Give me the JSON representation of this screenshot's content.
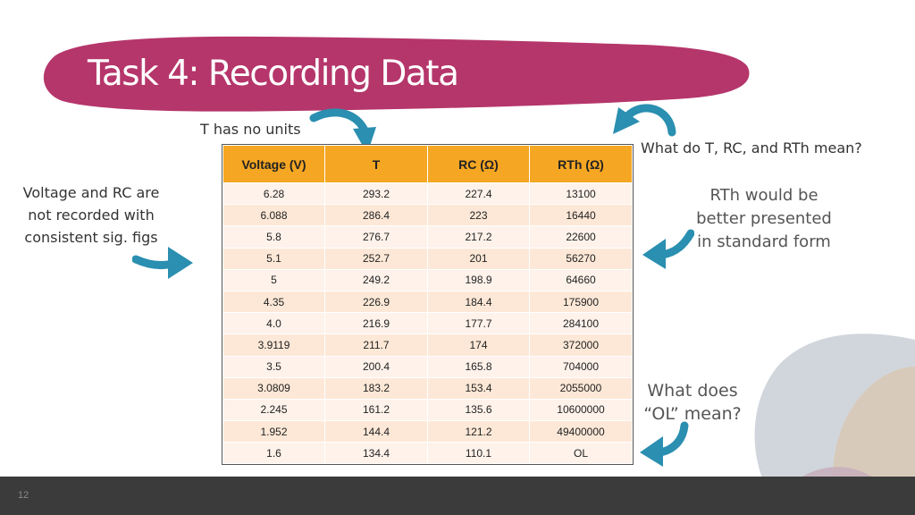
{
  "slide": {
    "title": "Task 4: Recording Data",
    "page_number": "12"
  },
  "notes": {
    "units": "T has no units",
    "meaning": "What do T, RC, and RTh mean?",
    "sigfigs": "Voltage and RC are not recorded with consistent sig. figs",
    "rth": "RTh would be better presented in standard form",
    "ol": "What does “OL” mean?"
  },
  "table": {
    "headers": [
      "Voltage (V)",
      "T",
      "RC (Ω)",
      "RTh (Ω)"
    ],
    "rows": [
      [
        "6.28",
        "293.2",
        "227.4",
        "13100"
      ],
      [
        "6.088",
        "286.4",
        "223",
        "16440"
      ],
      [
        "5.8",
        "276.7",
        "217.2",
        "22600"
      ],
      [
        "5.1",
        "252.7",
        "201",
        "56270"
      ],
      [
        "5",
        "249.2",
        "198.9",
        "64660"
      ],
      [
        "4.35",
        "226.9",
        "184.4",
        "175900"
      ],
      [
        "4.0",
        "216.9",
        "177.7",
        "284100"
      ],
      [
        "3.9119",
        "211.7",
        "174",
        "372000"
      ],
      [
        "3.5",
        "200.4",
        "165.8",
        "704000"
      ],
      [
        "3.0809",
        "183.2",
        "153.4",
        "2055000"
      ],
      [
        "2.245",
        "161.2",
        "135.6",
        "10600000"
      ],
      [
        "1.952",
        "144.4",
        "121.2",
        "49400000"
      ],
      [
        "1.6",
        "134.4",
        "110.1",
        "OL"
      ]
    ]
  },
  "colors": {
    "banner": "#b5366b",
    "header": "#f5a623",
    "arrow": "#2a8fb0",
    "footer": "#3b3b3b"
  }
}
